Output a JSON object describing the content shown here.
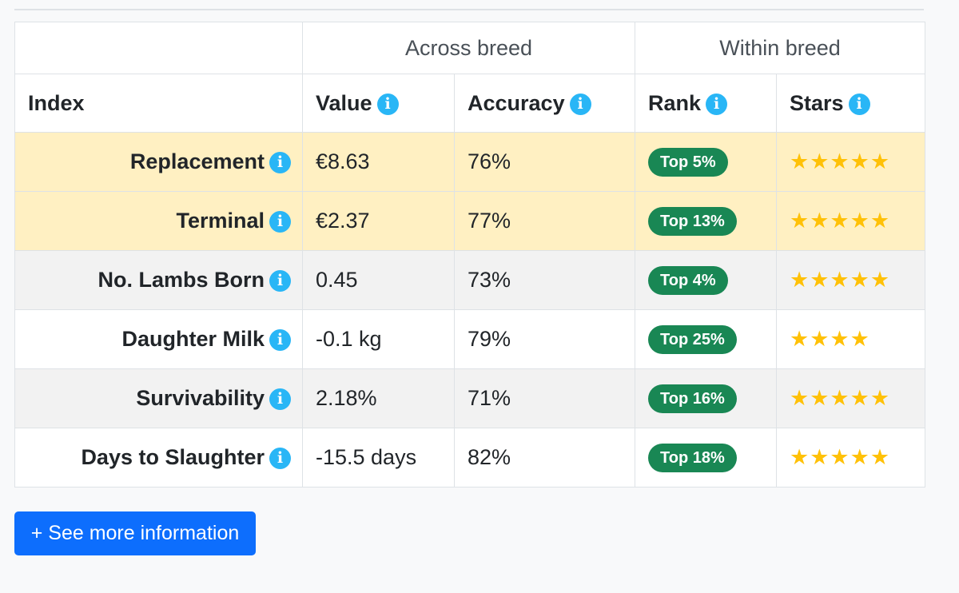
{
  "table": {
    "group_headers": {
      "across": "Across breed",
      "within": "Within breed"
    },
    "columns": {
      "index": "Index",
      "value": "Value",
      "accuracy": "Accuracy",
      "rank": "Rank",
      "stars": "Stars"
    },
    "rows": [
      {
        "index": "Replacement",
        "value": "€8.63",
        "accuracy": "76%",
        "rank": "Top 5%",
        "stars": "★★★★★",
        "star_count": 5
      },
      {
        "index": "Terminal",
        "value": "€2.37",
        "accuracy": "77%",
        "rank": "Top 13%",
        "stars": "★★★★★",
        "star_count": 5
      },
      {
        "index": "No. Lambs Born",
        "value": "0.45",
        "accuracy": "73%",
        "rank": "Top 4%",
        "stars": "★★★★★",
        "star_count": 5
      },
      {
        "index": "Daughter Milk",
        "value": "-0.1 kg",
        "accuracy": "79%",
        "rank": "Top 25%",
        "stars": "★★★★",
        "star_count": 4
      },
      {
        "index": "Survivability",
        "value": "2.18%",
        "accuracy": "71%",
        "rank": "Top 16%",
        "stars": "★★★★★",
        "star_count": 5
      },
      {
        "index": "Days to Slaughter",
        "value": "-15.5 days",
        "accuracy": "82%",
        "rank": "Top 18%",
        "stars": "★★★★★",
        "star_count": 5
      }
    ]
  },
  "info_glyph": "i",
  "more_button": {
    "label": "+ See more information"
  },
  "colors": {
    "highlight_row": "#fff0c2",
    "striped_row": "#f2f2f2",
    "info_icon": "#29b6f6",
    "rank_badge": "#198754",
    "star": "#ffc107",
    "button": "#0d6efd"
  },
  "icons": {
    "info": "info-icon",
    "star": "star-icon"
  }
}
